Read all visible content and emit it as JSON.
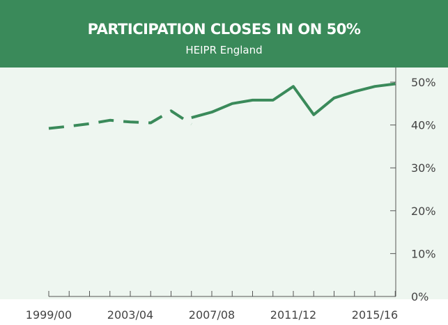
{
  "header": {
    "title": "PARTICIPATION CLOSES IN ON 50%",
    "subtitle": "HEIPR England"
  },
  "colors": {
    "header_bg": "#3a8a5a",
    "plot_bg": "#eef6f0",
    "line": "#3a8a5a",
    "axis": "#555555",
    "text": "#444444"
  },
  "chart_data": {
    "type": "line",
    "title": "PARTICIPATION CLOSES IN ON 50%",
    "subtitle": "HEIPR England",
    "xlabel": "",
    "ylabel": "",
    "ylim": [
      0,
      50
    ],
    "y_axis_side": "right",
    "y_ticks": [
      0,
      10,
      20,
      30,
      40,
      50
    ],
    "y_tick_labels": [
      "0%",
      "10%",
      "20%",
      "30%",
      "40%",
      "50%"
    ],
    "x": [
      "1999/00",
      "2000/01",
      "2001/02",
      "2002/03",
      "2003/04",
      "2004/05",
      "2005/06",
      "2006/07",
      "2007/08",
      "2008/09",
      "2009/10",
      "2010/11",
      "2011/12",
      "2012/13",
      "2013/14",
      "2014/15",
      "2015/16",
      "2016/17"
    ],
    "x_tick_labels": [
      "1999/00",
      "2003/04",
      "2007/08",
      "2011/12",
      "2015/16"
    ],
    "grid": false,
    "series": [
      {
        "style": "dashed",
        "x": [
          "1999/00",
          "2000/01",
          "2001/02",
          "2002/03",
          "2003/04",
          "2004/05",
          "2005/06",
          "2006/07"
        ],
        "values": [
          39.2,
          39.7,
          40.3,
          41.1,
          40.7,
          40.5,
          43.3,
          40.2
        ]
      },
      {
        "style": "solid",
        "x": [
          "2006/07",
          "2007/08",
          "2008/09",
          "2009/10",
          "2010/11",
          "2011/12",
          "2012/13",
          "2013/14",
          "2014/15",
          "2015/16",
          "2016/17"
        ],
        "values": [
          41.7,
          43.0,
          45.0,
          45.8,
          45.8,
          49.0,
          42.4,
          46.3,
          47.8,
          49.0,
          49.6
        ]
      }
    ]
  }
}
